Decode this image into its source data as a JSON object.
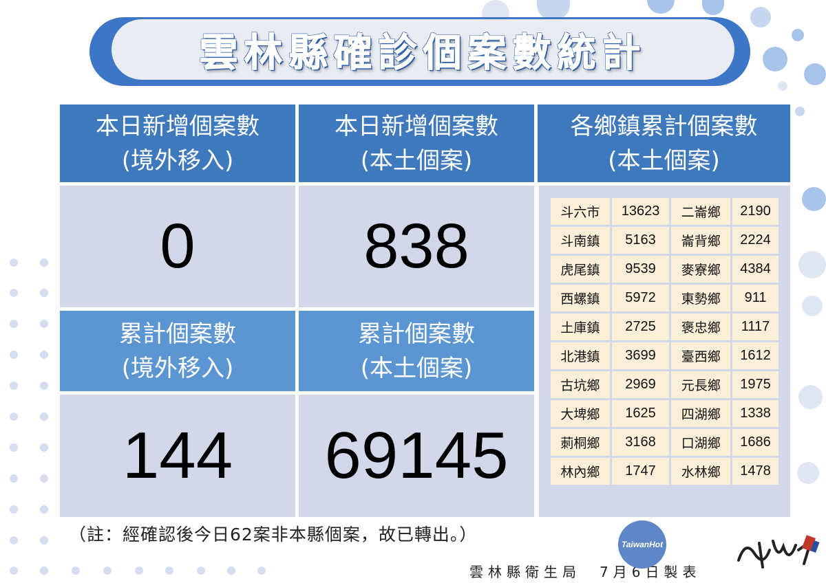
{
  "title": "雲林縣確診個案數統計",
  "headers": {
    "daily_imported": [
      "本日新增個案數",
      "(境外移入)"
    ],
    "daily_local": [
      "本日新增個案數",
      "(本土個案)"
    ],
    "township_cumulative": [
      "各鄉鎮累計個案數",
      "(本土個案)"
    ],
    "total_imported": [
      "累計個案數",
      "(境外移入)"
    ],
    "total_local": [
      "累計個案數",
      "(本土個案)"
    ]
  },
  "values": {
    "daily_imported": "0",
    "daily_local": "838",
    "total_imported": "144",
    "total_local": "69145"
  },
  "townships": [
    [
      [
        "斗六市",
        "13623"
      ],
      [
        "二崙鄉",
        "2190"
      ]
    ],
    [
      [
        "斗南鎮",
        "5163"
      ],
      [
        "崙背鄉",
        "2224"
      ]
    ],
    [
      [
        "虎尾鎮",
        "9539"
      ],
      [
        "麥寮鄉",
        "4384"
      ]
    ],
    [
      [
        "西螺鎮",
        "5972"
      ],
      [
        "東勢鄉",
        "911"
      ]
    ],
    [
      [
        "土庫鎮",
        "2725"
      ],
      [
        "褒忠鄉",
        "1117"
      ]
    ],
    [
      [
        "北港鎮",
        "3699"
      ],
      [
        "臺西鄉",
        "1612"
      ]
    ],
    [
      [
        "古坑鄉",
        "2969"
      ],
      [
        "元長鄉",
        "1975"
      ]
    ],
    [
      [
        "大埤鄉",
        "1625"
      ],
      [
        "四湖鄉",
        "1338"
      ]
    ],
    [
      [
        "莿桐鄉",
        "3168"
      ],
      [
        "口湖鄉",
        "1686"
      ]
    ],
    [
      [
        "林內鄉",
        "1747"
      ],
      [
        "水林鄉",
        "1478"
      ]
    ]
  ],
  "note": "（註：經確認後今日62案非本縣個案，故已轉出。）",
  "footer": "雲林縣衛生局　7月6日製表",
  "logo_text": "TaiwanHot",
  "colors": {
    "header": "#3f79bd",
    "header_light": "#5b95d2",
    "value_bg": "#d2d8e9",
    "table_cell": "#fcefd8",
    "title_pill": "#3d76c6"
  }
}
